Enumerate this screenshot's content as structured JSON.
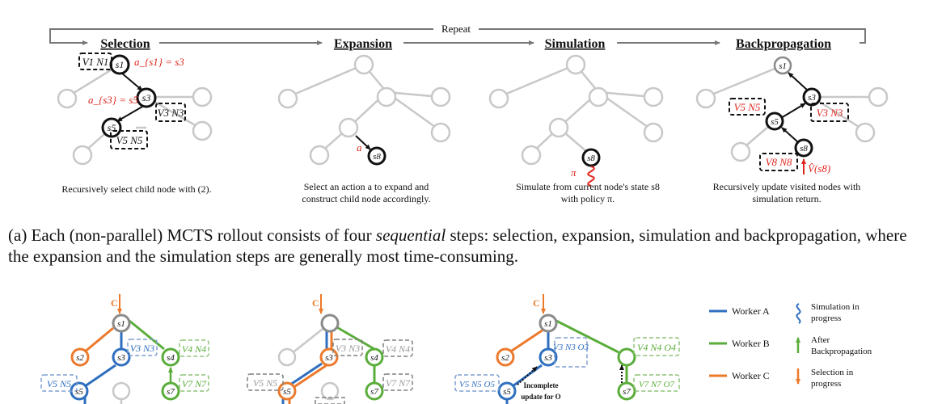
{
  "top": {
    "repeat_label": "Repeat",
    "panels": [
      {
        "title": "Selection",
        "description_lines": [
          "Recursively select child node with (2)."
        ]
      },
      {
        "title": "Expansion",
        "description_lines": [
          "Select an action a to expand and",
          "construct child node accordingly."
        ]
      },
      {
        "title": "Simulation",
        "description_lines": [
          "Simulate from current node's state s8",
          "with policy π."
        ]
      },
      {
        "title": "Backpropagation",
        "description_lines": [
          "Recursively update visited nodes with",
          "simulation return."
        ]
      }
    ],
    "selection": {
      "eq1": "a_{s1} = s3",
      "eq2": "a_{s3} = s5",
      "box1": "V1 N1",
      "box2": "V3 N3",
      "box3": "V5 N5",
      "nodes": [
        "s1",
        "s3",
        "s5"
      ]
    },
    "expansion": {
      "action": "a",
      "node": "s8"
    },
    "simulation": {
      "node": "s8",
      "policy": "π"
    },
    "backprop": {
      "nodes": [
        "s1",
        "s3",
        "s5",
        "s8"
      ],
      "box_v5": "V5 N5",
      "box_v3": "V3 N3",
      "box_v8": "V8 N8",
      "return": "V̂(s8)"
    }
  },
  "caption": {
    "label": "(a)",
    "text_before": "Each (non-parallel) MCTS rollout consists of four",
    "emphasis": "sequential",
    "text_after": "steps: selection, expansion, simulation and backpropagation, where the expansion and the simulation steps are generally most time-consuming."
  },
  "bottom": {
    "c_label": "C",
    "panel1": {
      "nodes": [
        "s1",
        "s2",
        "s3",
        "s4",
        "s5",
        "s7"
      ],
      "boxes": [
        "V3 N3",
        "V4 N4",
        "V5 N5",
        "V7 N7"
      ]
    },
    "panel2": {
      "nodes": [
        "s3",
        "s4",
        "s5",
        "s7"
      ],
      "boxes": [
        "V3 N3",
        "V4 N4",
        "V5 N5",
        "V7 N7"
      ]
    },
    "panel3": {
      "nodes": [
        "s1",
        "s2",
        "s3",
        "s5",
        "s7"
      ],
      "boxes": [
        "V3 N3 O3",
        "V4 N4 O4",
        "V5 N5 O5",
        "V7 N7 O7"
      ],
      "note_line1": "Incomplete",
      "note_line2": "update for O"
    },
    "legend": [
      {
        "label": "Worker A",
        "color": "#2f6fbf"
      },
      {
        "label": "Worker B",
        "color": "#5aad3a"
      },
      {
        "label": "Worker C",
        "color": "#ec7a2c"
      }
    ],
    "legend_symbols": [
      {
        "label_lines": [
          "Simulation in",
          "progress"
        ]
      },
      {
        "label_lines": [
          "After",
          "Backpropagation"
        ]
      },
      {
        "label_lines": [
          "Selection in",
          "progress"
        ]
      }
    ]
  },
  "colors": {
    "worker_a": "#2f6fbf",
    "worker_b": "#5aad3a",
    "worker_c": "#ec7a2c",
    "red": "#e0271f",
    "gray": "#bdbdbd",
    "dark_gray": "#7f7f7f"
  }
}
